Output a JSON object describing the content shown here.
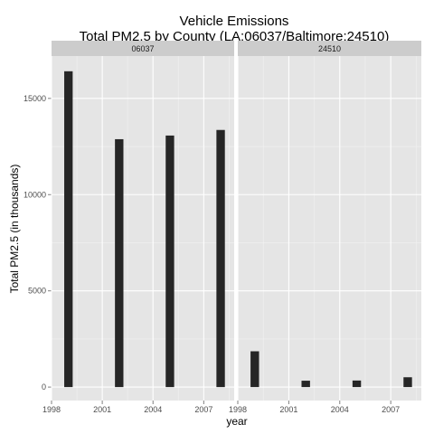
{
  "chart_data": {
    "type": "bar",
    "title_line1": "Vehicle Emissions",
    "title_line2": "Total PM2.5 by County (LA:06037/Baltimore:24510)",
    "xlabel": "year",
    "ylabel": "Total PM2.5 (in thousands)",
    "xlim": [
      1998,
      2008.8
    ],
    "ylim": [
      -700,
      17200
    ],
    "x_ticks": [
      1998,
      2001,
      2004,
      2007
    ],
    "y_ticks": [
      0,
      5000,
      10000,
      15000
    ],
    "grid": true,
    "facets": [
      {
        "name": "06037",
        "x": [
          1999,
          2002,
          2005,
          2008
        ],
        "values": [
          16410,
          12880,
          13070,
          13360
        ]
      },
      {
        "name": "24510",
        "x": [
          1999,
          2002,
          2005,
          2008
        ],
        "values": [
          1860,
          330,
          340,
          510
        ]
      }
    ],
    "colors": {
      "panel_bg": "#e5e5e5",
      "strip_bg": "#cccccc",
      "bar": "#262626",
      "grid_major": "#ffffff",
      "grid_minor": "#f2f2f2"
    }
  }
}
